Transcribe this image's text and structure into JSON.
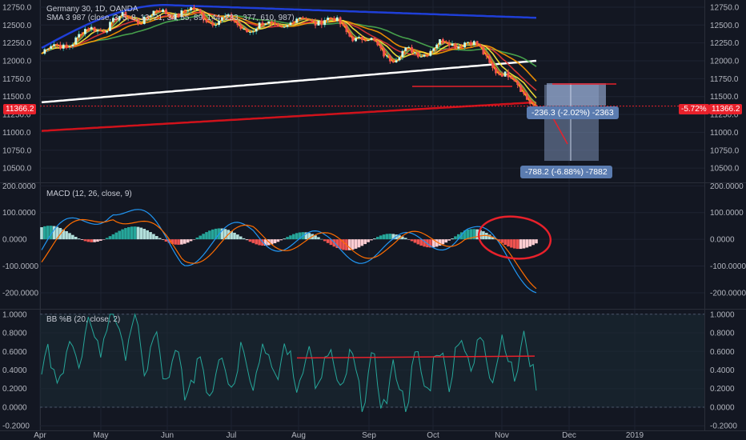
{
  "header": {
    "symbol": "Germany 30, 1D, OANDA",
    "sma_legend": "SMA 3 987 (close, 3, 5, 8, 13, 21, 34, 55, 89, 144, 233, 377, 610, 987)"
  },
  "price_tags": {
    "current_left": "11366.2",
    "current_right": "11366.2",
    "change_right": "-5.72%"
  },
  "measure_labels": {
    "small": "-236.3 (-2.02%) -2363",
    "large": "-788.2 (-6.88%) -7882"
  },
  "colors": {
    "background": "#131722",
    "grid": "#1e2331",
    "axis_text": "#b2b5be",
    "up_strong": "#26a69a",
    "up_weak": "#b2dfdb",
    "down_strong": "#ef5350",
    "down_weak": "#ffcdd2",
    "macd_line": "#2196f3",
    "signal_line": "#ff6d00",
    "annotation_red": "#e8212b",
    "bb_line": "#26a69a"
  },
  "chart_data": [
    {
      "type": "line",
      "title": "Germany 30, 1D, OANDA",
      "ylim": [
        10300,
        12850
      ],
      "y_ticks": [
        "12750.0",
        "12500.0",
        "12250.0",
        "12000.0",
        "11750.0",
        "11500.0",
        "11250.0",
        "11000.0",
        "10750.0",
        "10500.0"
      ],
      "x_ticks": [
        "Apr",
        "May",
        "Jun",
        "Jul",
        "Aug",
        "Sep",
        "Oct",
        "Nov",
        "Dec",
        "2019"
      ],
      "series": [
        {
          "name": "price",
          "x": [
            "Apr",
            "May",
            "Jun",
            "Jul",
            "Aug",
            "Sep",
            "Oct",
            "Nov"
          ],
          "values": [
            12100,
            12550,
            12700,
            12450,
            12600,
            12050,
            12300,
            11400
          ]
        }
      ],
      "current_price": 11366.2,
      "legend": "top-left"
    },
    {
      "type": "bar",
      "title": "MACD (12, 26, close, 9)",
      "ylim": [
        -260,
        210
      ],
      "y_ticks": [
        "200.0000",
        "100.0000",
        "0.0000",
        "-100.0000",
        "-200.0000"
      ],
      "series": [
        {
          "name": "MACD",
          "x": [
            "Apr",
            "May",
            "Jun",
            "Jul",
            "Aug",
            "Sep",
            "Oct",
            "Nov"
          ],
          "values": [
            -40,
            140,
            -50,
            30,
            -30,
            -40,
            40,
            -150
          ]
        },
        {
          "name": "Signal",
          "x": [
            "Apr",
            "May",
            "Jun",
            "Jul",
            "Aug",
            "Sep",
            "Oct",
            "Nov"
          ],
          "values": [
            -60,
            120,
            -60,
            20,
            -20,
            -30,
            30,
            -140
          ]
        }
      ],
      "legend": "top-left"
    },
    {
      "type": "line",
      "title": "BB %B (20, close, 2)",
      "ylim": [
        -0.25,
        1.05
      ],
      "y_ticks": [
        "1.0000",
        "0.8000",
        "0.6000",
        "0.4000",
        "0.2000",
        "0.0000",
        "-0.2000"
      ],
      "series": [
        {
          "name": "%B",
          "x": [
            "Apr",
            "May",
            "Jun",
            "Jul",
            "Aug",
            "Sep",
            "Oct",
            "Nov"
          ],
          "values": [
            0.3,
            0.9,
            0.3,
            0.5,
            0.4,
            0.2,
            0.6,
            0.5
          ]
        }
      ],
      "legend": "top-left"
    }
  ]
}
